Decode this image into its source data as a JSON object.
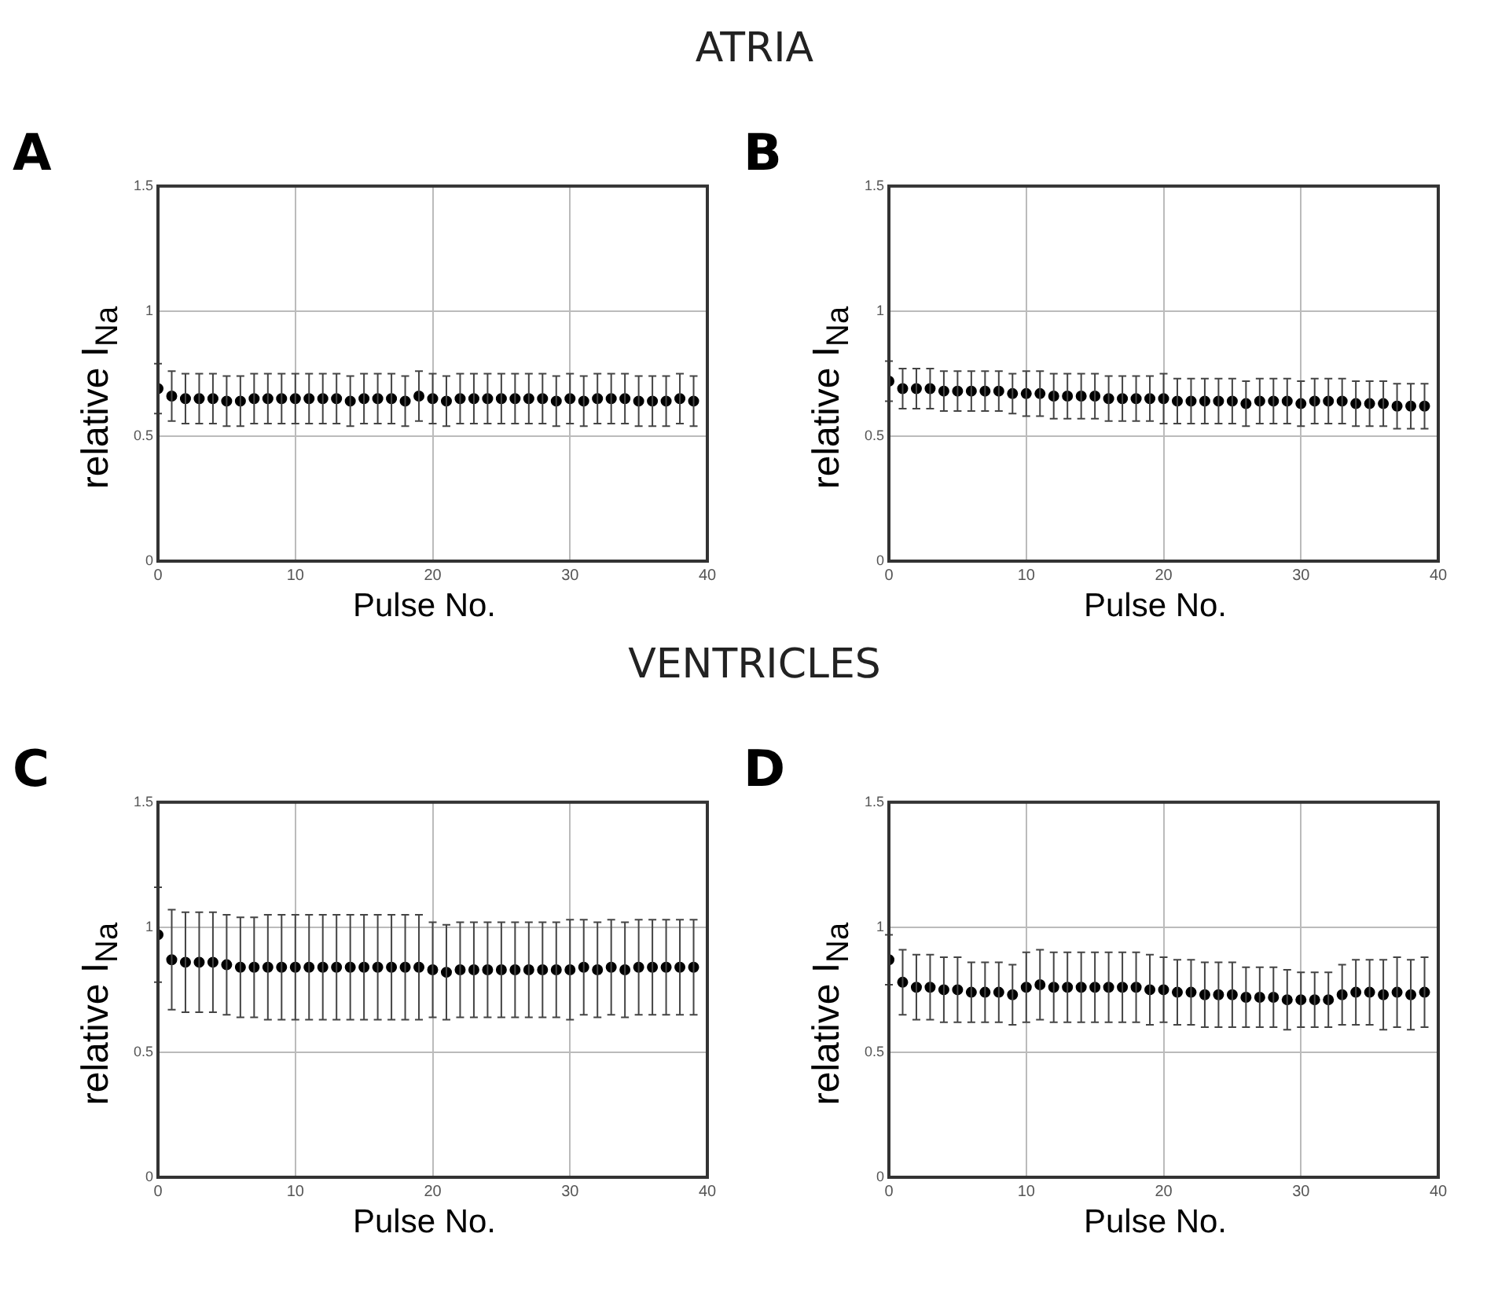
{
  "chart_data": [
    {
      "type": "scatter",
      "title": "A",
      "annotations": [
        "ATRIA"
      ],
      "xlabel": "Pulse No.",
      "ylabel": "relative I$_{Na}$",
      "xlim": [
        0,
        40
      ],
      "xticks": [
        0,
        10,
        20,
        30,
        40
      ],
      "ylim": [
        0,
        1.5
      ],
      "yticks": [
        0,
        0.5,
        1,
        1.5
      ],
      "grid": true,
      "marker": "circle",
      "x": [
        0,
        1,
        2,
        3,
        4,
        5,
        6,
        7,
        8,
        9,
        10,
        11,
        12,
        13,
        14,
        15,
        16,
        17,
        18,
        19,
        20,
        21,
        22,
        23,
        24,
        25,
        26,
        27,
        28,
        29,
        30,
        31,
        32,
        33,
        34,
        35,
        36,
        37,
        38,
        39
      ],
      "series": [
        {
          "color": "#000000",
          "values": [
            0.69,
            0.66,
            0.65,
            0.65,
            0.65,
            0.64,
            0.64,
            0.65,
            0.65,
            0.65,
            0.65,
            0.65,
            0.65,
            0.65,
            0.64,
            0.65,
            0.65,
            0.65,
            0.64,
            0.66,
            0.65,
            0.64,
            0.65,
            0.65,
            0.65,
            0.65,
            0.65,
            0.65,
            0.65,
            0.64,
            0.65,
            0.64,
            0.65,
            0.65,
            0.65,
            0.64,
            0.64,
            0.64,
            0.65,
            0.64
          ],
          "errors": [
            0.1,
            0.1,
            0.1,
            0.1,
            0.1,
            0.1,
            0.1,
            0.1,
            0.1,
            0.1,
            0.1,
            0.1,
            0.1,
            0.1,
            0.1,
            0.1,
            0.1,
            0.1,
            0.1,
            0.1,
            0.1,
            0.1,
            0.1,
            0.1,
            0.1,
            0.1,
            0.1,
            0.1,
            0.1,
            0.1,
            0.1,
            0.1,
            0.1,
            0.1,
            0.1,
            0.1,
            0.1,
            0.1,
            0.1,
            0.1
          ]
        }
      ]
    },
    {
      "type": "scatter",
      "title": "B",
      "xlabel": "Pulse No.",
      "ylabel": "relative I$_{Na}$",
      "xlim": [
        0,
        40
      ],
      "xticks": [
        0,
        10,
        20,
        30,
        40
      ],
      "ylim": [
        0,
        1.5
      ],
      "yticks": [
        0,
        0.5,
        1,
        1.5
      ],
      "grid": true,
      "marker": "circle",
      "x": [
        0,
        1,
        2,
        3,
        4,
        5,
        6,
        7,
        8,
        9,
        10,
        11,
        12,
        13,
        14,
        15,
        16,
        17,
        18,
        19,
        20,
        21,
        22,
        23,
        24,
        25,
        26,
        27,
        28,
        29,
        30,
        31,
        32,
        33,
        34,
        35,
        36,
        37,
        38,
        39
      ],
      "series": [
        {
          "color": "#000000",
          "values": [
            0.72,
            0.69,
            0.69,
            0.69,
            0.68,
            0.68,
            0.68,
            0.68,
            0.68,
            0.67,
            0.67,
            0.67,
            0.66,
            0.66,
            0.66,
            0.66,
            0.65,
            0.65,
            0.65,
            0.65,
            0.65,
            0.64,
            0.64,
            0.64,
            0.64,
            0.64,
            0.63,
            0.64,
            0.64,
            0.64,
            0.63,
            0.64,
            0.64,
            0.64,
            0.63,
            0.63,
            0.63,
            0.62,
            0.62,
            0.62
          ],
          "errors": [
            0.08,
            0.08,
            0.08,
            0.08,
            0.08,
            0.08,
            0.08,
            0.08,
            0.08,
            0.08,
            0.09,
            0.09,
            0.09,
            0.09,
            0.09,
            0.09,
            0.09,
            0.09,
            0.09,
            0.09,
            0.1,
            0.09,
            0.09,
            0.09,
            0.09,
            0.09,
            0.09,
            0.09,
            0.09,
            0.09,
            0.09,
            0.09,
            0.09,
            0.09,
            0.09,
            0.09,
            0.09,
            0.09,
            0.09,
            0.09
          ]
        }
      ]
    },
    {
      "type": "scatter",
      "title": "C",
      "annotations": [
        "VENTRICLES"
      ],
      "xlabel": "Pulse No.",
      "ylabel": "relative I$_{Na}$",
      "xlim": [
        0,
        40
      ],
      "xticks": [
        0,
        10,
        20,
        30,
        40
      ],
      "ylim": [
        0,
        1.5
      ],
      "yticks": [
        0,
        0.5,
        1,
        1.5
      ],
      "grid": true,
      "marker": "circle",
      "x": [
        0,
        1,
        2,
        3,
        4,
        5,
        6,
        7,
        8,
        9,
        10,
        11,
        12,
        13,
        14,
        15,
        16,
        17,
        18,
        19,
        20,
        21,
        22,
        23,
        24,
        25,
        26,
        27,
        28,
        29,
        30,
        31,
        32,
        33,
        34,
        35,
        36,
        37,
        38,
        39
      ],
      "series": [
        {
          "color": "#000000",
          "values": [
            0.97,
            0.87,
            0.86,
            0.86,
            0.86,
            0.85,
            0.84,
            0.84,
            0.84,
            0.84,
            0.84,
            0.84,
            0.84,
            0.84,
            0.84,
            0.84,
            0.84,
            0.84,
            0.84,
            0.84,
            0.83,
            0.82,
            0.83,
            0.83,
            0.83,
            0.83,
            0.83,
            0.83,
            0.83,
            0.83,
            0.83,
            0.84,
            0.83,
            0.84,
            0.83,
            0.84,
            0.84,
            0.84,
            0.84,
            0.84
          ],
          "errors": [
            0.19,
            0.2,
            0.2,
            0.2,
            0.2,
            0.2,
            0.2,
            0.2,
            0.21,
            0.21,
            0.21,
            0.21,
            0.21,
            0.21,
            0.21,
            0.21,
            0.21,
            0.21,
            0.21,
            0.21,
            0.19,
            0.19,
            0.19,
            0.19,
            0.19,
            0.19,
            0.19,
            0.19,
            0.19,
            0.19,
            0.2,
            0.19,
            0.19,
            0.19,
            0.19,
            0.19,
            0.19,
            0.19,
            0.19,
            0.19
          ]
        }
      ]
    },
    {
      "type": "scatter",
      "title": "D",
      "xlabel": "Pulse No.",
      "ylabel": "relative I$_{Na}$",
      "xlim": [
        0,
        40
      ],
      "xticks": [
        0,
        10,
        20,
        30,
        40
      ],
      "ylim": [
        0,
        1.5
      ],
      "yticks": [
        0,
        0.5,
        1,
        1.5
      ],
      "grid": true,
      "marker": "circle",
      "x": [
        0,
        1,
        2,
        3,
        4,
        5,
        6,
        7,
        8,
        9,
        10,
        11,
        12,
        13,
        14,
        15,
        16,
        17,
        18,
        19,
        20,
        21,
        22,
        23,
        24,
        25,
        26,
        27,
        28,
        29,
        30,
        31,
        32,
        33,
        34,
        35,
        36,
        37,
        38,
        39
      ],
      "series": [
        {
          "color": "#000000",
          "values": [
            0.87,
            0.78,
            0.76,
            0.76,
            0.75,
            0.75,
            0.74,
            0.74,
            0.74,
            0.73,
            0.76,
            0.77,
            0.76,
            0.76,
            0.76,
            0.76,
            0.76,
            0.76,
            0.76,
            0.75,
            0.75,
            0.74,
            0.74,
            0.73,
            0.73,
            0.73,
            0.72,
            0.72,
            0.72,
            0.71,
            0.71,
            0.71,
            0.71,
            0.73,
            0.74,
            0.74,
            0.73,
            0.74,
            0.73,
            0.74
          ],
          "errors": [
            0.1,
            0.13,
            0.13,
            0.13,
            0.13,
            0.13,
            0.12,
            0.12,
            0.12,
            0.12,
            0.14,
            0.14,
            0.14,
            0.14,
            0.14,
            0.14,
            0.14,
            0.14,
            0.14,
            0.14,
            0.13,
            0.13,
            0.13,
            0.13,
            0.13,
            0.13,
            0.12,
            0.12,
            0.12,
            0.12,
            0.11,
            0.11,
            0.11,
            0.12,
            0.13,
            0.13,
            0.14,
            0.14,
            0.14,
            0.14
          ]
        }
      ]
    }
  ]
}
